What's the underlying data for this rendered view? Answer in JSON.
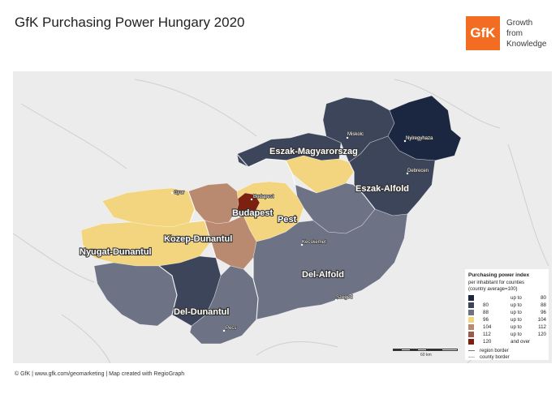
{
  "title": "GfK Purchasing Power Hungary 2020",
  "logo": {
    "mark": "GfK",
    "lines": [
      "Growth",
      "from",
      "Knowledge"
    ],
    "color": "#f26c21"
  },
  "regions": [
    {
      "name": "Eszak-Magyarorszag"
    },
    {
      "name": "Eszak-Alfold"
    },
    {
      "name": "Budapest"
    },
    {
      "name": "Pest"
    },
    {
      "name": "Kozep-Dunantul"
    },
    {
      "name": "Nyugat-Dunantul"
    },
    {
      "name": "Del-Alfold"
    },
    {
      "name": "Del-Dunantul"
    }
  ],
  "cities": [
    {
      "name": "Miskolc"
    },
    {
      "name": "Nyiregyhaza"
    },
    {
      "name": "Debrecen"
    },
    {
      "name": "Gyor"
    },
    {
      "name": "Budapest"
    },
    {
      "name": "Kecskemet"
    },
    {
      "name": "Szeged"
    },
    {
      "name": "Pecs"
    }
  ],
  "legend": {
    "title": "Purchasing power index",
    "subtitle_1": "per inhabitant for counties",
    "subtitle_2": "(country average=100)",
    "classes": [
      {
        "from": "",
        "label": "up to",
        "to": "80",
        "color": "#1b2640"
      },
      {
        "from": "80",
        "label": "up to",
        "to": "88",
        "color": "#3c455a"
      },
      {
        "from": "88",
        "label": "up to",
        "to": "96",
        "color": "#6d7385"
      },
      {
        "from": "96",
        "label": "up to",
        "to": "104",
        "color": "#f2d57e"
      },
      {
        "from": "104",
        "label": "up to",
        "to": "112",
        "color": "#b98a70"
      },
      {
        "from": "112",
        "label": "up to",
        "to": "120",
        "color": "#9a5a4c"
      },
      {
        "from": "120",
        "label": "and over",
        "to": "",
        "color": "#7d2010"
      }
    ],
    "region_border": "region border",
    "county_border": "county border"
  },
  "scalebar": {
    "label": "60 km"
  },
  "credit": "© GfK | www.gfk.com/geomarketing | Map created with RegioGraph"
}
